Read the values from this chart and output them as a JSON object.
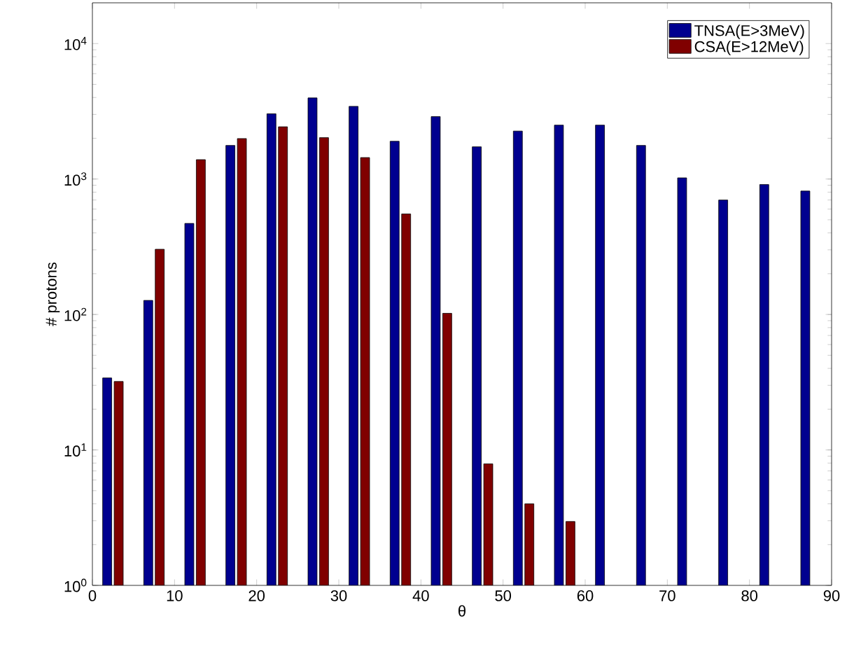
{
  "chart_data": {
    "type": "bar",
    "xlabel": "θ",
    "ylabel": "# protons",
    "x": [
      2.5,
      7.5,
      12.5,
      17.5,
      22.5,
      27.5,
      32.5,
      37.5,
      42.5,
      47.5,
      52.5,
      57.5,
      62.5,
      67.5,
      72.5,
      77.5,
      82.5,
      87.5
    ],
    "series": [
      {
        "name": "TNSA(E>3MeV)",
        "color": "#00008f",
        "values": [
          34,
          127,
          470,
          1770,
          3030,
          3970,
          3440,
          1900,
          2890,
          1730,
          2260,
          2500,
          2500,
          1770,
          1020,
          700,
          910,
          815
        ]
      },
      {
        "name": "CSA(E>12MeV)",
        "color": "#800000",
        "values": [
          32,
          303,
          1390,
          1990,
          2430,
          2020,
          1440,
          552,
          102,
          7.9,
          4.0,
          2.96,
          null,
          null,
          null,
          null,
          null,
          null
        ]
      }
    ],
    "log": "y",
    "xlim": [
      0,
      90
    ],
    "ylim": [
      1,
      20000
    ],
    "xticks": [
      0,
      10,
      20,
      30,
      40,
      50,
      60,
      70,
      80,
      90
    ],
    "yticks": [
      {
        "value": 1,
        "label": "10$^{0}$"
      },
      {
        "value": 10,
        "label": "10$^{1}$"
      },
      {
        "value": 100,
        "label": "10$^{2}$"
      },
      {
        "value": 1000,
        "label": "10$^{3}$"
      },
      {
        "value": 10000,
        "label": "10$^{4}$"
      }
    ],
    "legend": "top right",
    "grid": false
  }
}
